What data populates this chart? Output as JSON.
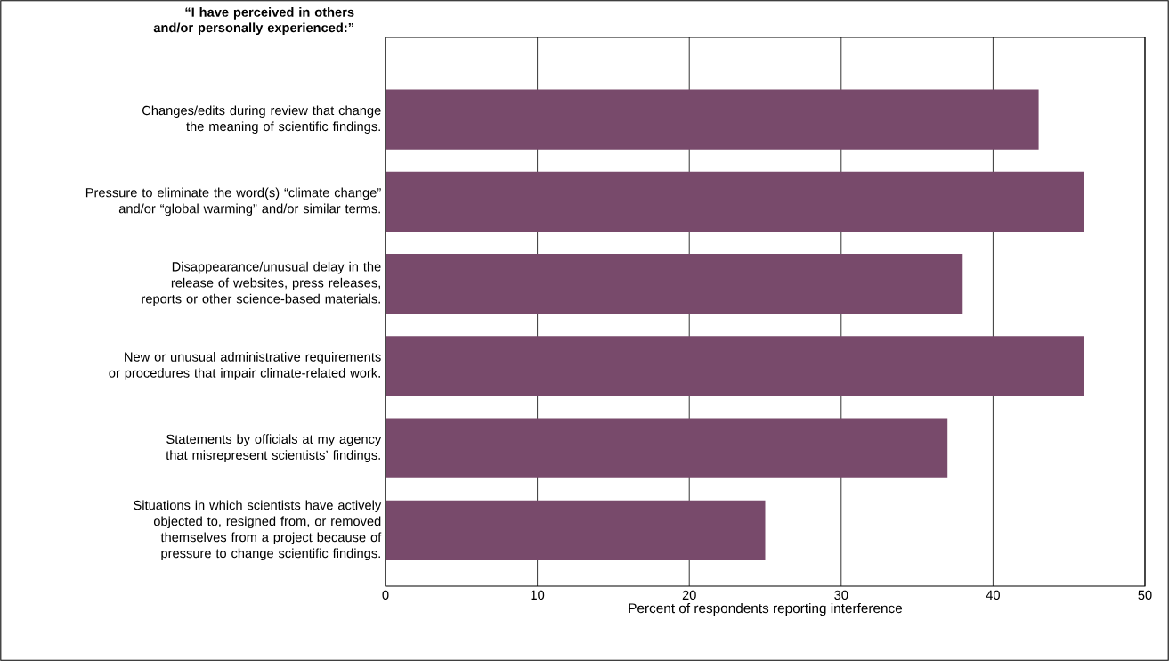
{
  "chart_data": {
    "type": "bar",
    "orientation": "horizontal",
    "title": "“I have perceived in others and/or personally experienced:”",
    "categories": [
      "Changes/edits during review that change the meaning of scientific findings.",
      "Pressure to eliminate the word(s) “climate change” and/or “global warming” and/or similar terms.",
      "Disappearance/unusual delay in the release of websites, press releases, reports or other science-based materials.",
      "New or unusual administrative requirements or procedures that impair climate-related work.",
      "Statements by officials at my agency that misrepresent scientists’ findings.",
      "Situations in which scientists have actively objected to, resigned from, or removed themselves from a project because of pressure to change scientific findings."
    ],
    "values": [
      43,
      46,
      38,
      46,
      37,
      25
    ],
    "color": "#784a6b",
    "xlabel": "Percent of respondents reporting interference",
    "xlim": [
      0,
      50
    ],
    "xticks": [
      0,
      10,
      20,
      30,
      40,
      50
    ],
    "grid": "x"
  }
}
